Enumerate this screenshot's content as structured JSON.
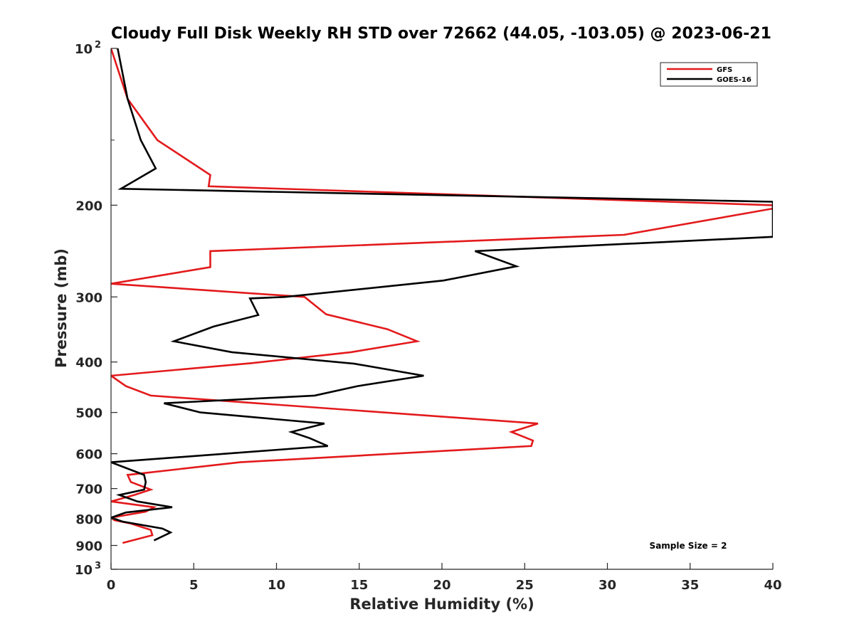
{
  "chart_data": {
    "type": "line",
    "title": "Cloudy Full Disk Weekly RH STD over 72662 (44.05, -103.05) @ 2023-06-21",
    "xlabel": "Relative Humidity (%)",
    "ylabel": "Pressure (mb)",
    "xlim": [
      0,
      40
    ],
    "ylim": [
      100,
      1000
    ],
    "y_scale": "log",
    "y_reversed": true,
    "grid": false,
    "legend_position": "top-right",
    "x_ticks": [
      0,
      5,
      10,
      15,
      20,
      25,
      30,
      35,
      40
    ],
    "y_ticks": [
      {
        "value": 100,
        "label": "10",
        "exp": "2"
      },
      {
        "value": 200,
        "label": "200",
        "exp": ""
      },
      {
        "value": 300,
        "label": "300",
        "exp": ""
      },
      {
        "value": 400,
        "label": "400",
        "exp": ""
      },
      {
        "value": 500,
        "label": "500",
        "exp": ""
      },
      {
        "value": 600,
        "label": "600",
        "exp": ""
      },
      {
        "value": 700,
        "label": "700",
        "exp": ""
      },
      {
        "value": 800,
        "label": "800",
        "exp": ""
      },
      {
        "value": 900,
        "label": "900",
        "exp": ""
      },
      {
        "value": 1000,
        "label": "10",
        "exp": "3"
      }
    ],
    "annotation": "Sample Size = 2",
    "series": [
      {
        "name": "GFS",
        "color": "#e31a1c",
        "points": [
          [
            0.0,
            100
          ],
          [
            1.0,
            125
          ],
          [
            2.8,
            150
          ],
          [
            6.0,
            175
          ],
          [
            5.9,
            184
          ],
          [
            40.0,
            200
          ],
          [
            40.0,
            203
          ],
          [
            31.0,
            228
          ],
          [
            6.0,
            245
          ],
          [
            6.0,
            263
          ],
          [
            0.0,
            283
          ],
          [
            11.7,
            300
          ],
          [
            13.0,
            324
          ],
          [
            16.7,
            346
          ],
          [
            18.5,
            365
          ],
          [
            14.5,
            383
          ],
          [
            8.5,
            402
          ],
          [
            0.0,
            425
          ],
          [
            0.9,
            445
          ],
          [
            2.4,
            464
          ],
          [
            25.8,
            525
          ],
          [
            24.2,
            545
          ],
          [
            25.5,
            566
          ],
          [
            25.4,
            580
          ],
          [
            7.8,
            623
          ],
          [
            1.0,
            659
          ],
          [
            1.2,
            680
          ],
          [
            2.4,
            703
          ],
          [
            1.4,
            720
          ],
          [
            0.0,
            741
          ],
          [
            2.6,
            760
          ],
          [
            2.1,
            775
          ],
          [
            0.0,
            796
          ],
          [
            0.2,
            805
          ],
          [
            1.2,
            817
          ],
          [
            2.4,
            840
          ],
          [
            2.5,
            860
          ],
          [
            0.7,
            890
          ]
        ]
      },
      {
        "name": "GOES-16",
        "color": "#000000",
        "points": [
          [
            0.4,
            100
          ],
          [
            1.0,
            125
          ],
          [
            1.8,
            150
          ],
          [
            2.7,
            170
          ],
          [
            0.6,
            186
          ],
          [
            40.0,
            197
          ],
          [
            40.0,
            230
          ],
          [
            22.0,
            245
          ],
          [
            24.5,
            262
          ],
          [
            20.1,
            279
          ],
          [
            10.5,
            300
          ],
          [
            8.4,
            302
          ],
          [
            8.9,
            325
          ],
          [
            6.2,
            342
          ],
          [
            3.8,
            365
          ],
          [
            7.3,
            383
          ],
          [
            14.7,
            403
          ],
          [
            18.9,
            425
          ],
          [
            14.9,
            445
          ],
          [
            12.3,
            464
          ],
          [
            3.2,
            480
          ],
          [
            5.4,
            500
          ],
          [
            12.9,
            525
          ],
          [
            10.9,
            545
          ],
          [
            12.0,
            560
          ],
          [
            13.1,
            580
          ],
          [
            0.0,
            623
          ],
          [
            2.0,
            659
          ],
          [
            2.1,
            680
          ],
          [
            2.0,
            703
          ],
          [
            0.5,
            720
          ],
          [
            1.6,
            741
          ],
          [
            3.7,
            760
          ],
          [
            0.9,
            778
          ],
          [
            0.0,
            796
          ],
          [
            0.7,
            810
          ],
          [
            3.1,
            835
          ],
          [
            3.6,
            850
          ],
          [
            2.6,
            880
          ]
        ]
      }
    ]
  }
}
